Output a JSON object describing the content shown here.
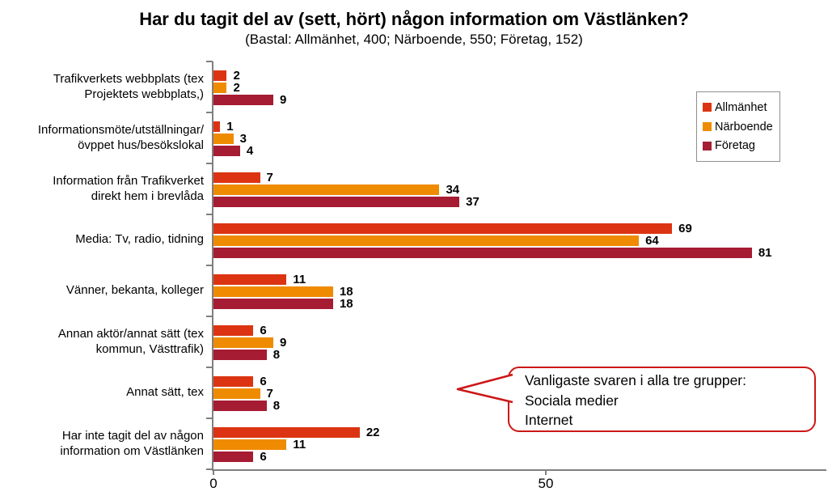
{
  "title": "Har du tagit del av (sett, hört) någon information om Västlänken?",
  "subtitle": "(Bastal: Allmänhet, 400; Närboende, 550; Företag, 152)",
  "chart_data": {
    "type": "bar",
    "orientation": "horizontal",
    "title": "Har du tagit del av (sett, hört) någon information om Västlänken?",
    "subtitle": "(Bastal: Allmänhet, 400; Närboende, 550; Företag, 152)",
    "categories": [
      "Trafikverkets webbplats (tex\nProjektets webbplats,)",
      "Informationsmöte/utställningar/\növppet hus/besökslokal",
      "Information från Trafikverket\ndirekt hem i brevlåda",
      "Media: Tv, radio, tidning",
      "Vänner, bekanta, kolleger",
      "Annan aktör/annat sätt (tex\nkommun, Västtrafik)",
      "Annat sätt, tex",
      "Har inte tagit del av någon\ninformation om Västlänken"
    ],
    "series": [
      {
        "name": "Allmänhet",
        "color": "#dc3412",
        "values": [
          2,
          1,
          7,
          69,
          11,
          6,
          6,
          22
        ]
      },
      {
        "name": "Närboende",
        "color": "#ef8b00",
        "values": [
          2,
          3,
          34,
          64,
          18,
          9,
          7,
          11
        ]
      },
      {
        "name": "Företag",
        "color": "#a51c33",
        "values": [
          9,
          4,
          37,
          81,
          18,
          8,
          8,
          6
        ]
      }
    ],
    "xlim": [
      0,
      92
    ],
    "xticks": [
      0,
      50
    ],
    "xtick_labels": [
      "0",
      "50"
    ],
    "grid": false,
    "legend_position": "upper-right",
    "value_labels": true
  },
  "callout": {
    "lines": [
      "Vanligaste svaren i alla tre grupper:",
      "Sociala medier",
      "Internet"
    ],
    "border_color": "#cc1717"
  },
  "colors": {
    "axis": "#7f7f7f",
    "legend_border": "#8f8f8f"
  }
}
